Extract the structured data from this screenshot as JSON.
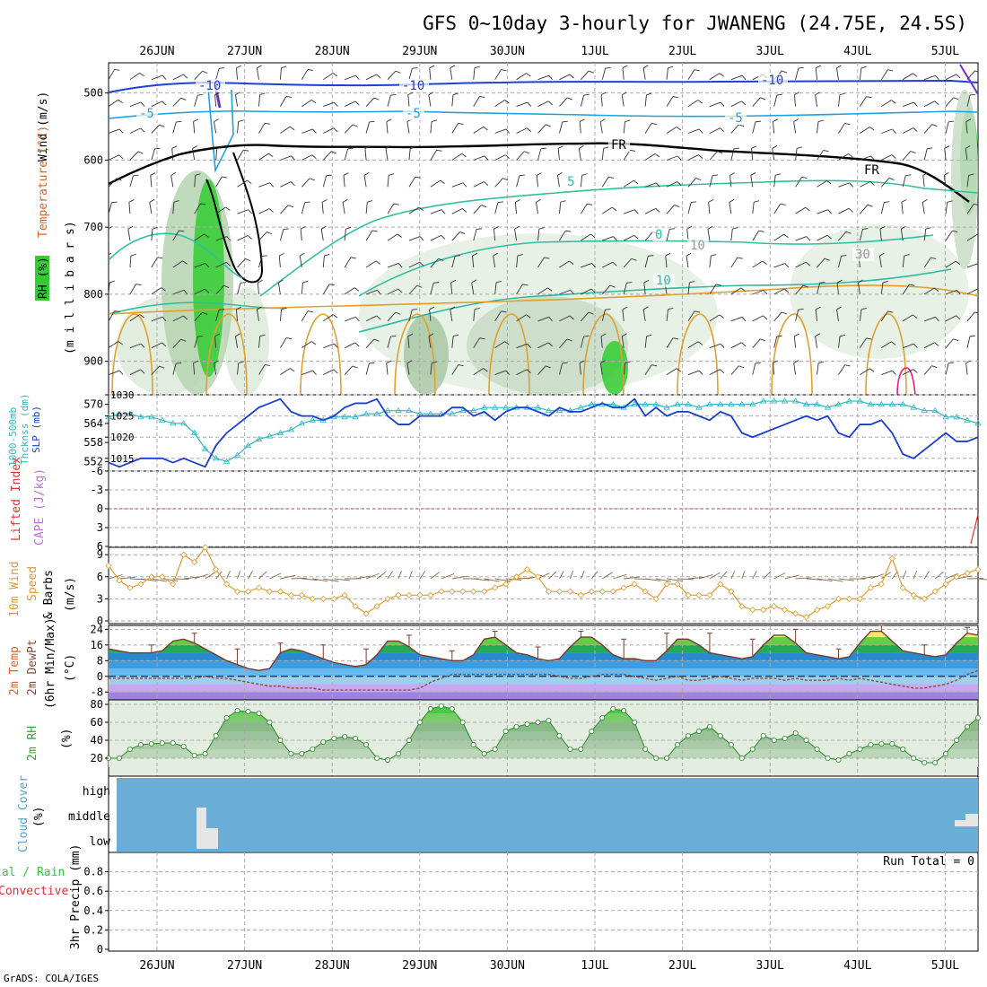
{
  "title": "GFS 0~10day 3-hourly for JWANENG (24.75E, 24.5S)",
  "footer": "GrADS: COLA/IGES",
  "dates": [
    "26JUN",
    "27JUN",
    "28JUN",
    "29JUN",
    "30JUN",
    "1JUL",
    "2JUL",
    "3JUL",
    "4JUL",
    "5JUL"
  ],
  "colors": {
    "temp_warm": "#e0a030",
    "temp_cool": "#20b0c0",
    "freeze": "#000000",
    "cold": "#2050d0",
    "slp": "#1a3fd0",
    "thickness": "#30b8c0",
    "wind10": "#e09a30",
    "rh_green": "#33cc33",
    "cloud": "#6aaed6",
    "lifted": "#e03030",
    "dewpt": "#8a4a3a"
  },
  "panels": {
    "upper": {
      "label_wind": "Wind (m/s)",
      "label_temp": "Temperature (°C)",
      "label_rh": "RH (%)",
      "label_mb": "(m i l l i b a r s)",
      "yticks": [
        "500",
        "600",
        "700",
        "800",
        "900"
      ],
      "contour_labels": [
        "-10",
        "-10",
        "-10",
        "-5",
        "-5",
        "-5",
        "FR",
        "FR",
        "5",
        "0",
        "10",
        "10",
        "30"
      ]
    },
    "slp": {
      "label_thick": "1000-500mb",
      "label_thick2": "Thcknss (dm)",
      "label_slp": "SLP (mb)",
      "yticks_left": [
        "570",
        "564",
        "558",
        "552"
      ],
      "yticks_right": [
        "1030",
        "1025",
        "1020",
        "1015"
      ]
    },
    "cape": {
      "label_li": "Lifted Index",
      "label_cape": "CAPE (J/kg)",
      "yticks": [
        "-6",
        "-3",
        "0",
        "3",
        "6"
      ]
    },
    "wind": {
      "label_a": "10m Wind",
      "label_b": "Speed",
      "label_c": "& Barbs",
      "label_d": "(m/s)",
      "yticks": [
        "9",
        "6",
        "3",
        "0"
      ]
    },
    "temp": {
      "label_a": "2m Temp",
      "label_b": "2m DewPt",
      "label_c": "(6hr Min/Max)",
      "label_d": "(°C)",
      "yticks": [
        "24",
        "16",
        "8",
        "0",
        "-8"
      ]
    },
    "rh": {
      "label_a": "2m RH",
      "label_b": "(%)",
      "yticks": [
        "80",
        "60",
        "40",
        "20"
      ]
    },
    "cloud": {
      "label_a": "Cloud Cover",
      "label_b": "(%)",
      "levels": [
        "high",
        "middle",
        "low"
      ]
    },
    "precip": {
      "label_a": "tal / Rain",
      "label_b": "Convective",
      "label_c": "3hr Precip (mm)",
      "run_total": "Run Total = 0",
      "yticks": [
        "0.8",
        "0.6",
        "0.4",
        "0.2",
        "0"
      ]
    }
  },
  "chart_data": [
    {
      "type": "line",
      "name": "SLP",
      "ylabel": "SLP (mb)",
      "ylim": [
        1012,
        1030
      ],
      "x_start": "25JUN 12Z",
      "x_step_hours": 3,
      "values": [
        1014,
        1013,
        1014,
        1015,
        1015,
        1015,
        1014,
        1015,
        1014,
        1013,
        1018,
        1021,
        1023,
        1025,
        1027,
        1028,
        1029,
        1026,
        1025,
        1025,
        1024,
        1025,
        1027,
        1028,
        1028,
        1029,
        1025,
        1023,
        1023,
        1025,
        1025,
        1025,
        1027,
        1027,
        1025,
        1026,
        1024,
        1026,
        1027,
        1027,
        1026,
        1025,
        1027,
        1026,
        1026,
        1027,
        1028,
        1027,
        1027,
        1029,
        1025,
        1027,
        1025,
        1026,
        1026,
        1025,
        1024,
        1026,
        1025,
        1021,
        1020,
        1021,
        1022,
        1023,
        1024,
        1025,
        1024,
        1025,
        1021,
        1020,
        1023,
        1023,
        1024,
        1021,
        1016,
        1015,
        1017,
        1019,
        1021,
        1019,
        1019,
        1020
      ]
    },
    {
      "type": "line",
      "name": "1000-500mb Thickness",
      "ylabel": "1000-500mb Thcknss (dm)",
      "ylim": [
        549,
        573
      ],
      "x_start": "25JUN 12Z",
      "x_step_hours": 3,
      "values": [
        566,
        567,
        567,
        566,
        566,
        565,
        564,
        564,
        561,
        556,
        553,
        552,
        554,
        557,
        559,
        560,
        561,
        562,
        564,
        565,
        565,
        566,
        566,
        566,
        567,
        567,
        568,
        568,
        568,
        567,
        567,
        567,
        567,
        568,
        568,
        569,
        569,
        569,
        569,
        569,
        569,
        568,
        568,
        568,
        569,
        570,
        570,
        570,
        569,
        570,
        570,
        570,
        569,
        570,
        570,
        569,
        570,
        570,
        570,
        570,
        570,
        571,
        571,
        571,
        571,
        570,
        570,
        569,
        570,
        571,
        571,
        570,
        570,
        570,
        570,
        569,
        568,
        568,
        566,
        566,
        565,
        564
      ]
    },
    {
      "type": "line",
      "name": "10m Wind Speed",
      "ylabel": "(m/s)",
      "ylim": [
        0,
        10
      ],
      "x_start": "25JUN 12Z",
      "x_step_hours": 3,
      "values": [
        7.5,
        5.5,
        4.5,
        5,
        6,
        6,
        5,
        9,
        8,
        10,
        7,
        5,
        4,
        4,
        4.5,
        4,
        4,
        3.5,
        3.5,
        3,
        3,
        3,
        3.5,
        2,
        1,
        2,
        3,
        3.5,
        3.5,
        3.5,
        3.5,
        4,
        4,
        4,
        4,
        4,
        4.5,
        5,
        6,
        7,
        6,
        4,
        4,
        4,
        3.5,
        4,
        4,
        4,
        4.5,
        5,
        4,
        3,
        5,
        5,
        3.5,
        3.5,
        3.5,
        5,
        4,
        2,
        1.5,
        1.5,
        2,
        1.5,
        1,
        0.5,
        1.5,
        2,
        3,
        3,
        3,
        4.5,
        5,
        8.5,
        4.5,
        3.5,
        3,
        4,
        5,
        6,
        6.5,
        7
      ]
    },
    {
      "type": "area",
      "name": "2m Temp",
      "ylabel": "(°C)",
      "ylim": [
        -12,
        26
      ],
      "x_start": "25JUN 12Z",
      "x_step_hours": 3,
      "values": [
        14,
        13,
        12,
        12,
        12,
        13,
        18,
        19,
        17,
        14,
        11,
        8,
        6,
        4,
        3,
        4,
        12,
        14,
        13,
        11,
        9,
        7,
        6,
        5,
        6,
        11,
        18,
        18,
        15,
        11,
        10,
        9,
        8,
        8,
        11,
        19,
        20,
        16,
        12,
        11,
        9,
        8,
        9,
        15,
        20,
        20,
        16,
        11,
        9,
        9,
        8,
        8,
        13,
        19,
        19,
        16,
        12,
        11,
        10,
        9,
        10,
        16,
        21,
        21,
        17,
        12,
        11,
        10,
        9,
        10,
        17,
        23,
        23,
        18,
        13,
        12,
        11,
        10,
        11,
        17,
        22,
        21
      ]
    },
    {
      "type": "line",
      "name": "2m DewPt",
      "ylabel": "(°C)",
      "ylim": [
        -12,
        26
      ],
      "x_start": "25JUN 12Z",
      "x_step_hours": 3,
      "values": [
        -1,
        -1,
        -1,
        -1,
        -1,
        -1,
        -1,
        -1,
        -1,
        0,
        -1,
        -1,
        -2,
        -3,
        -4,
        -5,
        -5,
        -6,
        -6,
        -6,
        -7,
        -7,
        -7,
        -7,
        -7,
        -7,
        -7,
        -7,
        -7,
        -6,
        -3,
        -1,
        1,
        1,
        1,
        1,
        1,
        1,
        1,
        1,
        1,
        1,
        0,
        -1,
        -1,
        0,
        1,
        1,
        1,
        0,
        -1,
        -2,
        -1,
        0,
        -2,
        -2,
        -1,
        0,
        -1,
        -2,
        -1,
        -1,
        -1,
        -2,
        -1,
        -2,
        -2,
        -2,
        -1,
        -2,
        -1,
        -2,
        -3,
        -4,
        -5,
        -6,
        -6,
        -5,
        -4,
        -2,
        1,
        3
      ]
    },
    {
      "type": "area",
      "name": "2m RH",
      "ylabel": "(%)",
      "ylim": [
        0,
        85
      ],
      "x_start": "25JUN 12Z",
      "x_step_hours": 3,
      "values": [
        20,
        20,
        30,
        35,
        36,
        37,
        37,
        33,
        23,
        25,
        45,
        65,
        73,
        72,
        70,
        60,
        40,
        25,
        25,
        30,
        38,
        42,
        44,
        42,
        35,
        20,
        18,
        25,
        40,
        60,
        75,
        78,
        75,
        60,
        35,
        25,
        30,
        50,
        55,
        58,
        60,
        62,
        45,
        30,
        30,
        50,
        65,
        75,
        73,
        60,
        30,
        20,
        20,
        35,
        45,
        50,
        55,
        45,
        35,
        20,
        30,
        45,
        40,
        42,
        48,
        40,
        30,
        20,
        18,
        25,
        30,
        35,
        36,
        36,
        30,
        20,
        15,
        15,
        25,
        40,
        55,
        65
      ]
    },
    {
      "type": "line",
      "name": "Lifted Index",
      "ylabel": "Lifted Index",
      "ylim": [
        -6,
        6
      ],
      "x_start": "25JUN 12Z",
      "x_step_hours": 3,
      "values": [
        0
      ]
    },
    {
      "type": "bar",
      "name": "3hr Precip",
      "ylabel": "3hr Precip (mm)",
      "ylim": [
        0,
        1.0
      ],
      "values": [
        0
      ]
    }
  ]
}
